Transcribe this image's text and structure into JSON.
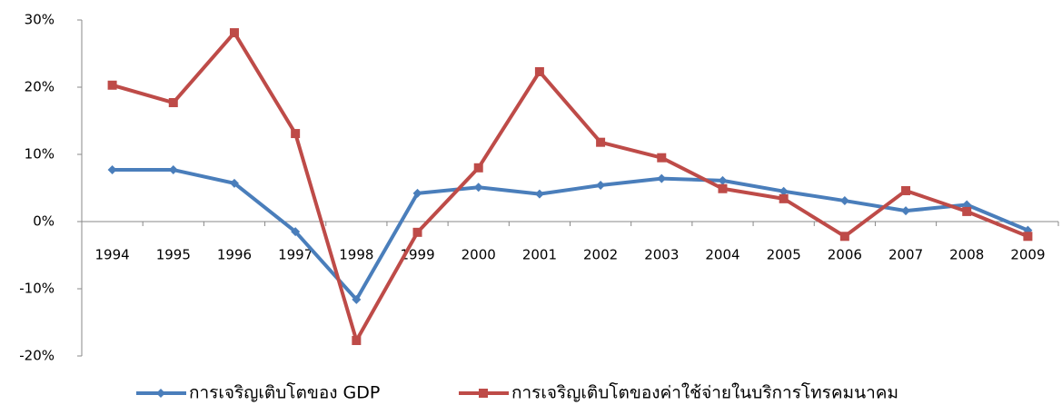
{
  "chart_data": {
    "type": "line",
    "categories": [
      "1994",
      "1995",
      "1996",
      "1997",
      "1998",
      "1999",
      "2000",
      "2001",
      "2002",
      "2003",
      "2004",
      "2005",
      "2006",
      "2007",
      "2008",
      "2009"
    ],
    "series": [
      {
        "name": "การเจริญเติบโตของ GDP",
        "color": "#4a7ebb",
        "marker": "diamond",
        "values": [
          7.7,
          7.7,
          5.7,
          -1.5,
          -11.6,
          4.2,
          5.1,
          4.1,
          5.4,
          6.4,
          6.1,
          4.5,
          3.1,
          1.6,
          2.5,
          -1.3
        ]
      },
      {
        "name": "การเจริญเติบโตของค่าใช้จ่ายในบริการโทรคมนาคม",
        "color": "#be4b48",
        "marker": "square",
        "values": [
          20.3,
          17.7,
          28.1,
          13.1,
          -17.7,
          -1.6,
          8.0,
          22.3,
          11.8,
          9.5,
          4.9,
          3.4,
          -2.2,
          4.6,
          1.5,
          -2.2
        ]
      }
    ],
    "ylim": [
      -20,
      30
    ],
    "yticks": [
      {
        "value": -20,
        "label": "-20%"
      },
      {
        "value": -10,
        "label": "-10%"
      },
      {
        "value": 0,
        "label": "0%"
      },
      {
        "value": 10,
        "label": "10%"
      },
      {
        "value": 20,
        "label": "20%"
      },
      {
        "value": 30,
        "label": "30%"
      }
    ],
    "grid": false,
    "legend": "bottom"
  }
}
